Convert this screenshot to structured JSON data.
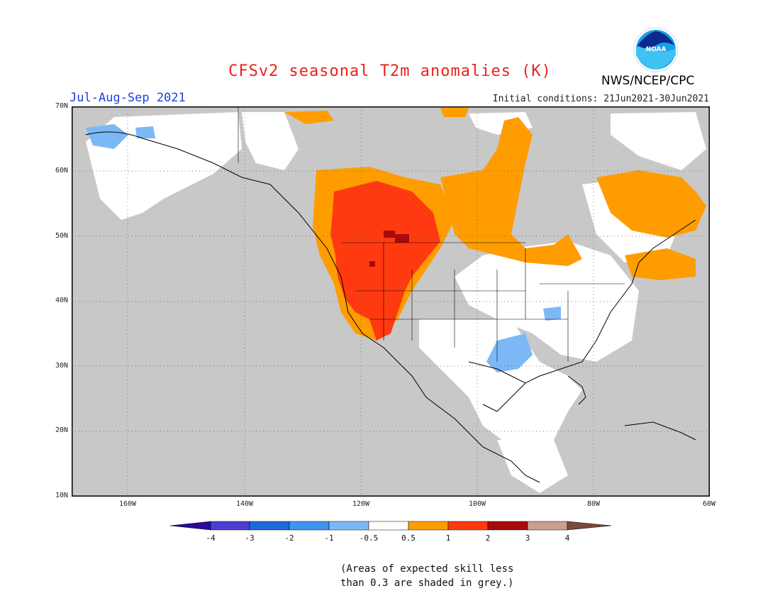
{
  "header": {
    "title": "CFSv2 seasonal T2m anomalies (K)",
    "season": "Jul-Aug-Sep 2021",
    "initial_conditions": "Initial conditions: 21Jun2021-30Jun2021",
    "org": "NWS/NCEP/CPC",
    "logo_text": "NOAA"
  },
  "map": {
    "lat_labels": [
      "70N",
      "60N",
      "50N",
      "40N",
      "30N",
      "20N",
      "10N"
    ],
    "lon_labels": [
      "160W",
      "140W",
      "120W",
      "100W",
      "80W",
      "60W"
    ],
    "grey_color": "#c8c8c8",
    "ocean_color": "#c8c8c8"
  },
  "colorbar": {
    "labels": [
      "-4",
      "-3",
      "-2",
      "-1",
      "-0.5",
      "0.5",
      "1",
      "2",
      "3",
      "4"
    ],
    "colors": [
      "#2a0a9a",
      "#4a3fd0",
      "#1f6ad6",
      "#3f94f0",
      "#7cb8f6",
      "#ffffff",
      "#ff9d00",
      "#ff3a10",
      "#a80a0a",
      "#c9a090",
      "#7a4a3a"
    ]
  },
  "note": {
    "line1": "(Areas of expected skill less",
    "line2": "than 0.3 are shaded in grey.)"
  }
}
